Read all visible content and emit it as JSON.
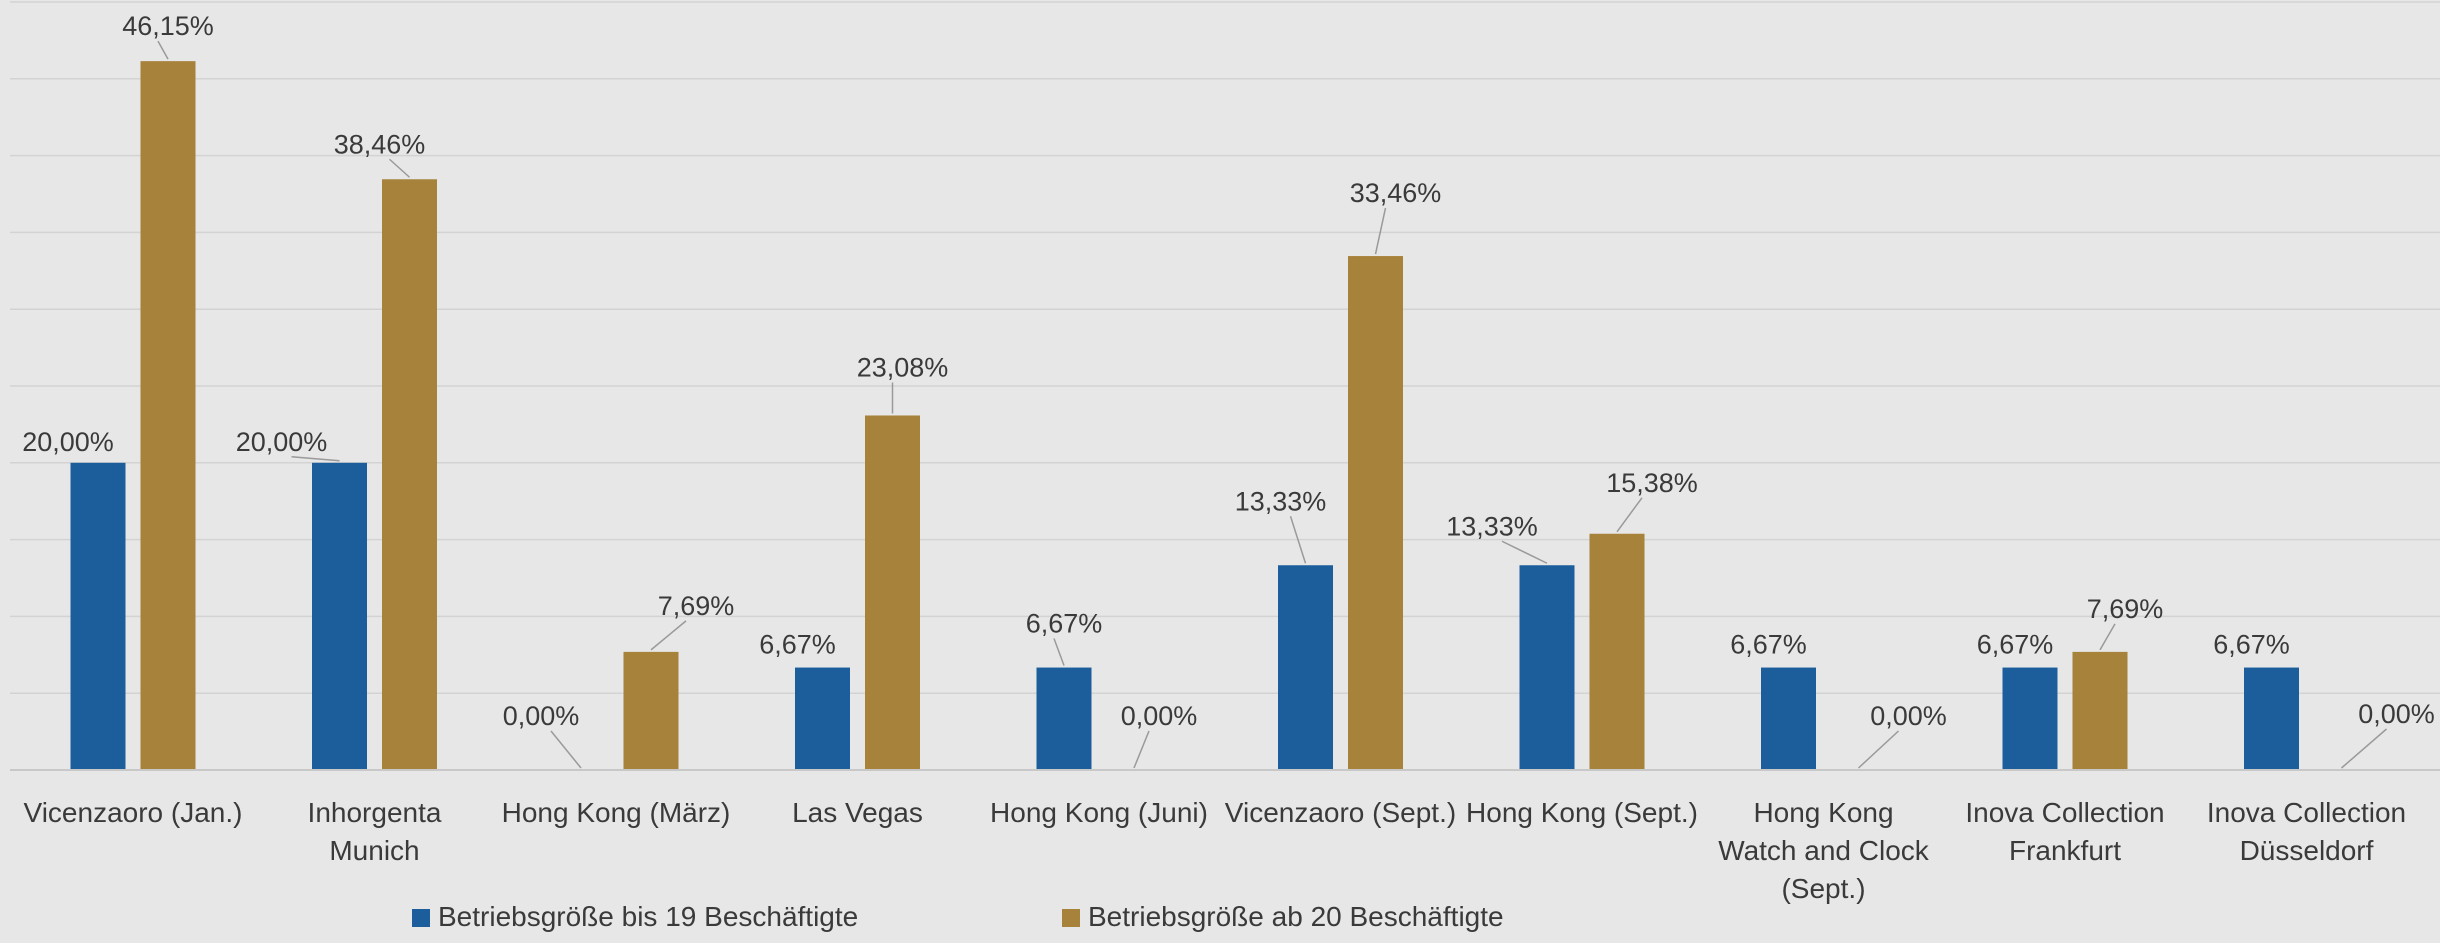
{
  "chart_data": {
    "type": "bar",
    "categories": [
      "Vicenzaoro (Jan.)",
      "Inhorgenta Munich",
      "Hong Kong (März)",
      "Las Vegas",
      "Hong Kong (Juni)",
      "Vicenzaoro (Sept.)",
      "Hong Kong (Sept.)",
      "Hong Kong Watch and Clock (Sept.)",
      "Inova Collection Frankfurt",
      "Inova Collection Düsseldorf"
    ],
    "category_lines": [
      [
        "Vicenzaoro (Jan.)"
      ],
      [
        "Inhorgenta",
        "Munich"
      ],
      [
        "Hong Kong (März)"
      ],
      [
        "Las Vegas"
      ],
      [
        "Hong Kong (Juni)"
      ],
      [
        "Vicenzaoro (Sept.)"
      ],
      [
        "Hong Kong (Sept.)"
      ],
      [
        "Hong Kong",
        "Watch and Clock",
        "(Sept.)"
      ],
      [
        "Inova Collection",
        "Frankfurt"
      ],
      [
        "Inova Collection",
        "Düsseldorf"
      ]
    ],
    "series": [
      {
        "name": "Betriebsgröße bis 19 Beschäftigte",
        "color": "#1b5e9b",
        "values": [
          20.0,
          20.0,
          0.0,
          6.67,
          6.67,
          13.33,
          13.33,
          6.67,
          6.67,
          6.67
        ],
        "labels": [
          "20,00%",
          "20,00%",
          "0,00%",
          "6,67%",
          "6,67%",
          "13,33%",
          "13,33%",
          "6,67%",
          "6,67%",
          "6,67%"
        ]
      },
      {
        "name": "Betriebsgröße ab 20 Beschäftigte",
        "color": "#a6823a",
        "values": [
          46.15,
          38.46,
          7.69,
          23.08,
          0.0,
          33.46,
          15.38,
          0.0,
          7.69,
          0.0
        ],
        "labels": [
          "46,15%",
          "38,46%",
          "7,69%",
          "23,08%",
          "0,00%",
          "33,46%",
          "15,38%",
          "0,00%",
          "7,69%",
          "0,00%"
        ]
      }
    ],
    "ylim": [
      0,
      50
    ],
    "grid": true,
    "legend_position": "bottom"
  }
}
